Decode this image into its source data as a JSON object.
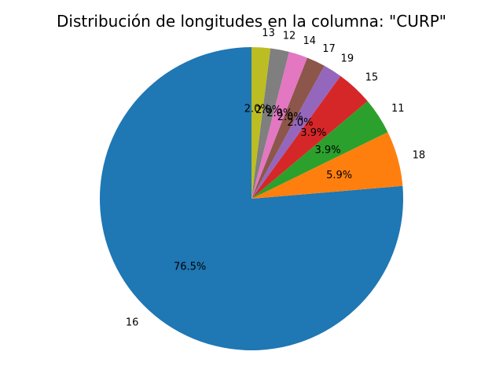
{
  "chart_data": {
    "type": "pie",
    "title": "Distribución de longitudes en la columna: \"CURP\"",
    "start_angle_deg": 90,
    "direction": "counterclockwise",
    "slices": [
      {
        "label": "16",
        "value": 76.5,
        "pct_label": "76.5%",
        "color": "#1f77b4"
      },
      {
        "label": "18",
        "value": 5.9,
        "pct_label": "5.9%",
        "color": "#ff7f0e"
      },
      {
        "label": "11",
        "value": 3.9,
        "pct_label": "3.9%",
        "color": "#2ca02c"
      },
      {
        "label": "15",
        "value": 3.9,
        "pct_label": "3.9%",
        "color": "#d62728"
      },
      {
        "label": "19",
        "value": 2.0,
        "pct_label": "2.0%",
        "color": "#9467bd"
      },
      {
        "label": "17",
        "value": 2.0,
        "pct_label": "2.0%",
        "color": "#8c564b"
      },
      {
        "label": "14",
        "value": 2.0,
        "pct_label": "2.0%",
        "color": "#e377c2"
      },
      {
        "label": "12",
        "value": 2.0,
        "pct_label": "2.0%",
        "color": "#7f7f7f"
      },
      {
        "label": "13",
        "value": 2.0,
        "pct_label": "2.0%",
        "color": "#bcbd22"
      }
    ]
  }
}
